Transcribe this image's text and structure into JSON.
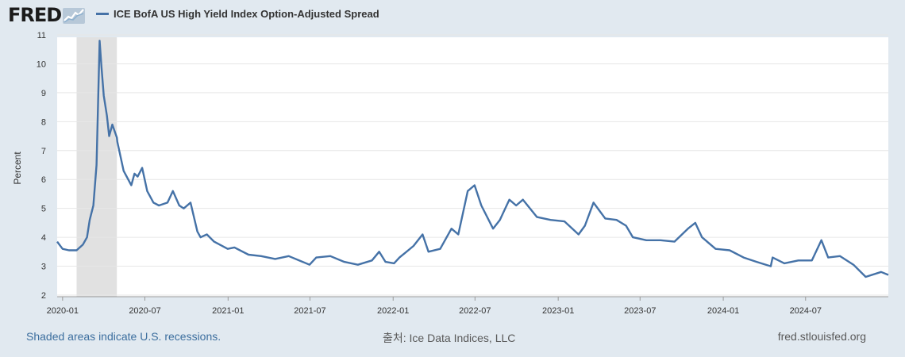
{
  "header": {
    "logo_text": "FRED",
    "series_title": "ICE BofA US High Yield Index Option-Adjusted Spread"
  },
  "footer": {
    "recession_note": "Shaded areas indicate U.S. recessions.",
    "source": "출처: Ice Data Indices, LLC",
    "site": "fred.stlouisfed.org"
  },
  "colors": {
    "line": "#4572a7",
    "recession": "#e1e1e1",
    "plot_bg": "#ffffff",
    "page_bg": "#e1e9f0"
  },
  "chart_data": {
    "type": "line",
    "title": "",
    "xlabel": "",
    "ylabel": "Percent",
    "ylim": [
      2,
      11
    ],
    "yticks": [
      2,
      3,
      4,
      5,
      6,
      7,
      8,
      9,
      10,
      11
    ],
    "xlim": [
      "2019-12-20",
      "2024-12-31"
    ],
    "xticks": [
      "2020-01",
      "2020-07",
      "2021-01",
      "2021-07",
      "2022-01",
      "2022-07",
      "2023-01",
      "2023-07",
      "2024-01",
      "2024-07"
    ],
    "grid": true,
    "legend": "top-left",
    "recessions": [
      {
        "start": "2020-02-01",
        "end": "2020-04-30"
      }
    ],
    "series": [
      {
        "name": "ICE BofA US High Yield Index Option-Adjusted Spread",
        "x": [
          "2019-12-20",
          "2020-01-01",
          "2020-01-15",
          "2020-02-01",
          "2020-02-15",
          "2020-02-24",
          "2020-03-01",
          "2020-03-09",
          "2020-03-16",
          "2020-03-23",
          "2020-03-27",
          "2020-04-01",
          "2020-04-08",
          "2020-04-13",
          "2020-04-20",
          "2020-04-30",
          "2020-05-01",
          "2020-05-15",
          "2020-06-01",
          "2020-06-08",
          "2020-06-15",
          "2020-06-25",
          "2020-07-06",
          "2020-07-20",
          "2020-08-01",
          "2020-08-20",
          "2020-09-01",
          "2020-09-15",
          "2020-09-25",
          "2020-10-10",
          "2020-10-25",
          "2020-11-01",
          "2020-11-15",
          "2020-12-01",
          "2020-12-31",
          "2021-01-15",
          "2021-02-15",
          "2021-03-15",
          "2021-04-15",
          "2021-05-15",
          "2021-06-15",
          "2021-06-30",
          "2021-07-15",
          "2021-08-15",
          "2021-09-15",
          "2021-10-15",
          "2021-11-15",
          "2021-12-01",
          "2021-12-15",
          "2022-01-03",
          "2022-01-15",
          "2022-02-15",
          "2022-03-07",
          "2022-03-20",
          "2022-04-15",
          "2022-05-10",
          "2022-05-25",
          "2022-06-15",
          "2022-06-30",
          "2022-07-15",
          "2022-08-10",
          "2022-08-25",
          "2022-09-15",
          "2022-09-30",
          "2022-10-15",
          "2022-11-15",
          "2022-12-15",
          "2023-01-15",
          "2023-02-15",
          "2023-03-01",
          "2023-03-20",
          "2023-04-15",
          "2023-05-10",
          "2023-05-31",
          "2023-06-15",
          "2023-07-15",
          "2023-08-15",
          "2023-09-15",
          "2023-10-15",
          "2023-10-31",
          "2023-11-15",
          "2023-12-15",
          "2024-01-15",
          "2024-02-15",
          "2024-03-15",
          "2024-04-15",
          "2024-04-19",
          "2024-05-15",
          "2024-06-15",
          "2024-07-15",
          "2024-08-05",
          "2024-08-20",
          "2024-09-15",
          "2024-10-15",
          "2024-11-11",
          "2024-12-15",
          "2024-12-31"
        ],
        "values": [
          3.85,
          3.6,
          3.55,
          3.55,
          3.75,
          4.0,
          4.6,
          5.1,
          6.5,
          10.8,
          9.9,
          8.9,
          8.2,
          7.5,
          7.9,
          7.45,
          7.3,
          6.3,
          5.8,
          6.2,
          6.1,
          6.4,
          5.6,
          5.2,
          5.1,
          5.2,
          5.6,
          5.1,
          5.0,
          5.2,
          4.2,
          4.0,
          4.1,
          3.85,
          3.6,
          3.65,
          3.4,
          3.35,
          3.25,
          3.35,
          3.15,
          3.05,
          3.3,
          3.35,
          3.15,
          3.05,
          3.2,
          3.5,
          3.15,
          3.1,
          3.3,
          3.7,
          4.1,
          3.5,
          3.6,
          4.3,
          4.1,
          5.6,
          5.8,
          5.1,
          4.3,
          4.6,
          5.3,
          5.1,
          5.3,
          4.7,
          4.6,
          4.55,
          4.1,
          4.4,
          5.2,
          4.65,
          4.6,
          4.4,
          4.0,
          3.9,
          3.9,
          3.85,
          4.3,
          4.5,
          4.0,
          3.6,
          3.55,
          3.3,
          3.15,
          3.0,
          3.3,
          3.1,
          3.2,
          3.2,
          3.9,
          3.3,
          3.35,
          3.05,
          2.63,
          2.8,
          2.7
        ]
      }
    ]
  }
}
